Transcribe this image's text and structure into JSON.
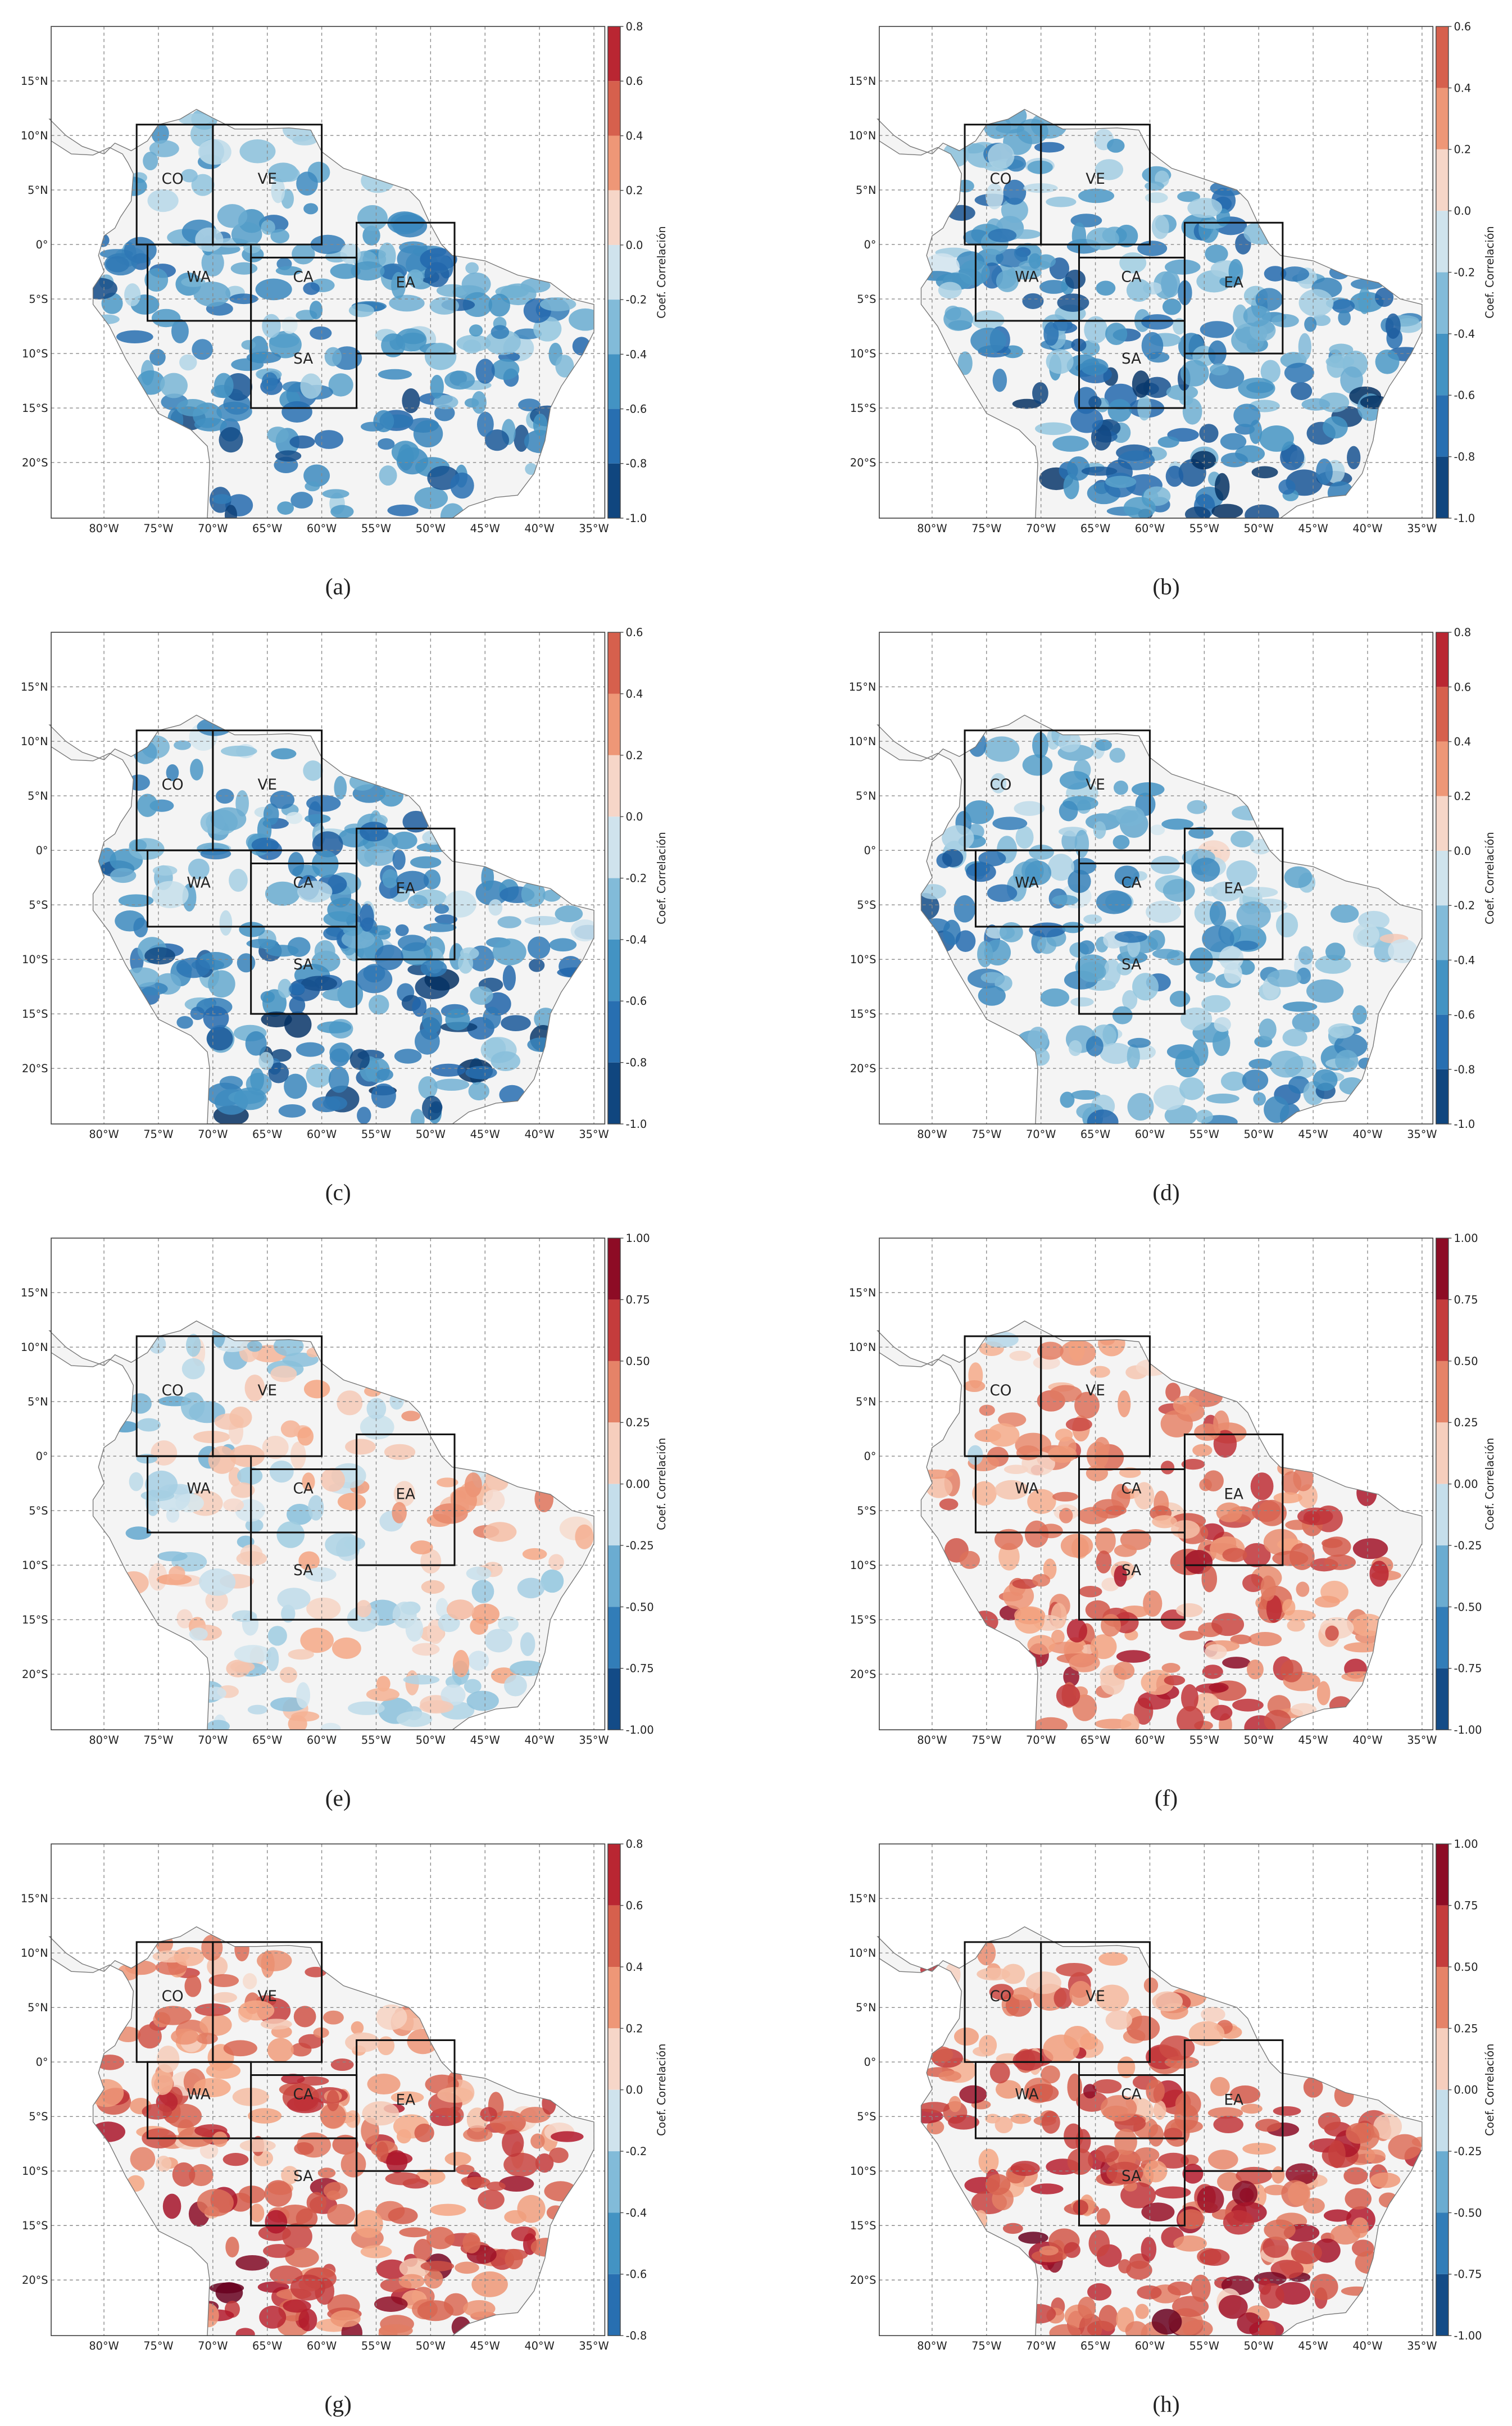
{
  "lon_ticks": [
    {
      "value": -80,
      "label": "80°W"
    },
    {
      "value": -75,
      "label": "75°W"
    },
    {
      "value": -70,
      "label": "70°W"
    },
    {
      "value": -65,
      "label": "65°W"
    },
    {
      "value": -60,
      "label": "60°W"
    },
    {
      "value": -55,
      "label": "55°W"
    },
    {
      "value": -50,
      "label": "50°W"
    },
    {
      "value": -45,
      "label": "45°W"
    },
    {
      "value": -40,
      "label": "40°W"
    },
    {
      "value": -35,
      "label": "35°W"
    }
  ],
  "lat_ticks": [
    {
      "value": 15,
      "label": "15°N"
    },
    {
      "value": 10,
      "label": "10°N"
    },
    {
      "value": 5,
      "label": "5°N"
    },
    {
      "value": 0,
      "label": "0°"
    },
    {
      "value": -5,
      "label": "5°S"
    },
    {
      "value": -10,
      "label": "10°S"
    },
    {
      "value": -15,
      "label": "15°S"
    },
    {
      "value": -20,
      "label": "20°S"
    }
  ],
  "regions": [
    "CO",
    "VE",
    "WA",
    "CA",
    "EA",
    "SA"
  ],
  "colorbar_label": "Coef. Correlación",
  "panels": [
    {
      "label": "(a)",
      "clim": [
        -1,
        0.8
      ],
      "cticks": [
        0.8,
        0.6,
        0.4,
        0.2,
        {
          "value": 0,
          "label": "0.0"
        },
        -0.2,
        -0.4,
        -0.6,
        -0.8,
        {
          "value": -1,
          "label": "-1.0"
        }
      ]
    },
    {
      "label": "(b)",
      "clim": [
        -1,
        0.6
      ],
      "cticks": [
        0.6,
        0.4,
        0.2,
        {
          "value": 0,
          "label": "0.0"
        },
        -0.2,
        -0.4,
        -0.6,
        -0.8,
        {
          "value": -1,
          "label": "-1.0"
        }
      ]
    },
    {
      "label": "(c)",
      "clim": [
        -1,
        0.6
      ],
      "cticks": [
        0.6,
        0.4,
        0.2,
        {
          "value": 0,
          "label": "0.0"
        },
        -0.2,
        -0.4,
        -0.6,
        -0.8,
        {
          "value": -1,
          "label": "-1.0"
        }
      ]
    },
    {
      "label": "(d)",
      "clim": [
        -1,
        0.8
      ],
      "cticks": [
        0.8,
        0.6,
        0.4,
        0.2,
        {
          "value": 0,
          "label": "0.0"
        },
        -0.2,
        -0.4,
        -0.6,
        -0.8,
        {
          "value": -1,
          "label": "-1.0"
        }
      ]
    },
    {
      "label": "(e)",
      "clim": [
        -1,
        1
      ],
      "cticks": [
        {
          "value": 1,
          "label": "1.00"
        },
        0.75,
        {
          "value": 0.5,
          "label": "0.50"
        },
        0.25,
        {
          "value": 0,
          "label": "0.00"
        },
        -0.25,
        {
          "value": -0.5,
          "label": "-0.50"
        },
        -0.75,
        {
          "value": -1,
          "label": "-1.00"
        }
      ]
    },
    {
      "label": "(f)",
      "clim": [
        -1,
        1
      ],
      "cticks": [
        {
          "value": 1,
          "label": "1.00"
        },
        0.75,
        {
          "value": 0.5,
          "label": "0.50"
        },
        0.25,
        {
          "value": 0,
          "label": "0.00"
        },
        -0.25,
        {
          "value": -0.5,
          "label": "-0.50"
        },
        -0.75,
        {
          "value": -1,
          "label": "-1.00"
        }
      ]
    },
    {
      "label": "(g)",
      "clim": [
        -0.8,
        0.8
      ],
      "cticks": [
        0.8,
        0.6,
        0.4,
        0.2,
        {
          "value": 0,
          "label": "0.0"
        },
        -0.2,
        -0.4,
        -0.6,
        -0.8
      ]
    },
    {
      "label": "(h)",
      "clim": [
        -1,
        1
      ],
      "cticks": [
        {
          "value": 1,
          "label": "1.00"
        },
        0.75,
        {
          "value": 0.5,
          "label": "0.50"
        },
        0.25,
        {
          "value": 0,
          "label": "0.00"
        },
        -0.25,
        {
          "value": -0.5,
          "label": "-0.50"
        },
        -0.75,
        {
          "value": -1,
          "label": "-1.00"
        }
      ]
    }
  ]
}
